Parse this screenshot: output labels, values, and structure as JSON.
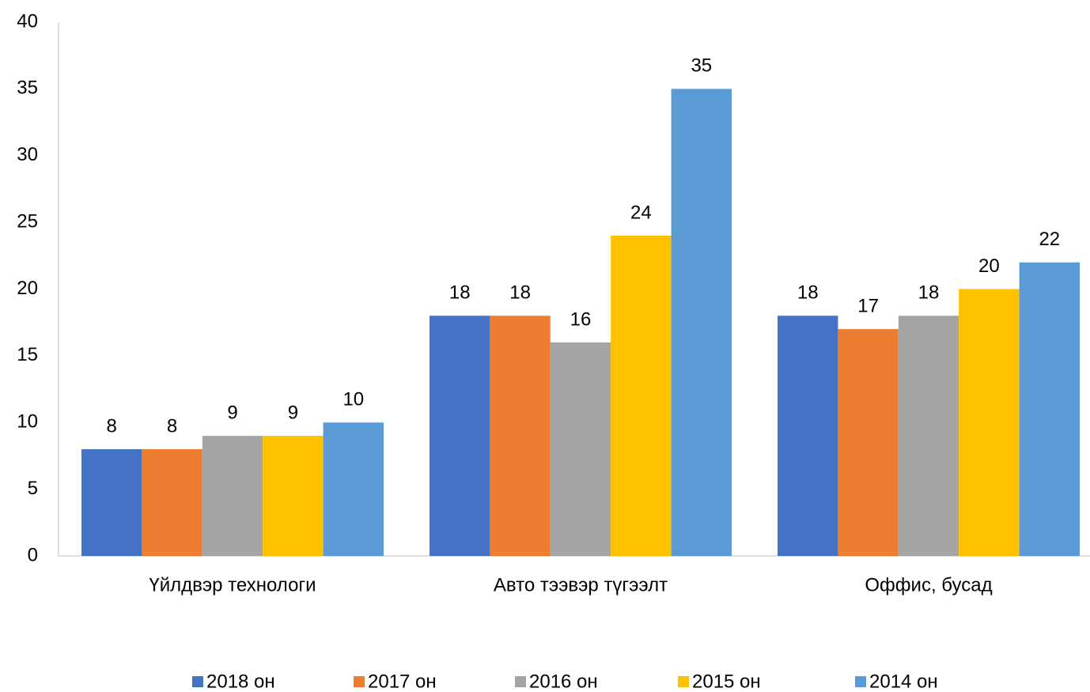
{
  "chart_data": {
    "type": "bar",
    "categories": [
      "Үйлдвэр технологи",
      "Авто тээвэр түгээлт",
      "Оффис, бусад"
    ],
    "series": [
      {
        "name": "2018 он",
        "color": "#4472c4",
        "values": [
          8,
          18,
          18
        ]
      },
      {
        "name": "2017 он",
        "color": "#ed7d31",
        "values": [
          8,
          18,
          17
        ]
      },
      {
        "name": "2016 он",
        "color": "#a5a5a5",
        "values": [
          9,
          16,
          18
        ]
      },
      {
        "name": "2015 он",
        "color": "#ffc000",
        "values": [
          9,
          24,
          20
        ]
      },
      {
        "name": "2014 он",
        "color": "#5b9bd5",
        "values": [
          10,
          35,
          22
        ]
      }
    ],
    "ylim": [
      0,
      40
    ],
    "yticks": [
      0,
      5,
      10,
      15,
      20,
      25,
      30,
      35,
      40
    ],
    "grid": false,
    "legend": "bottom"
  }
}
